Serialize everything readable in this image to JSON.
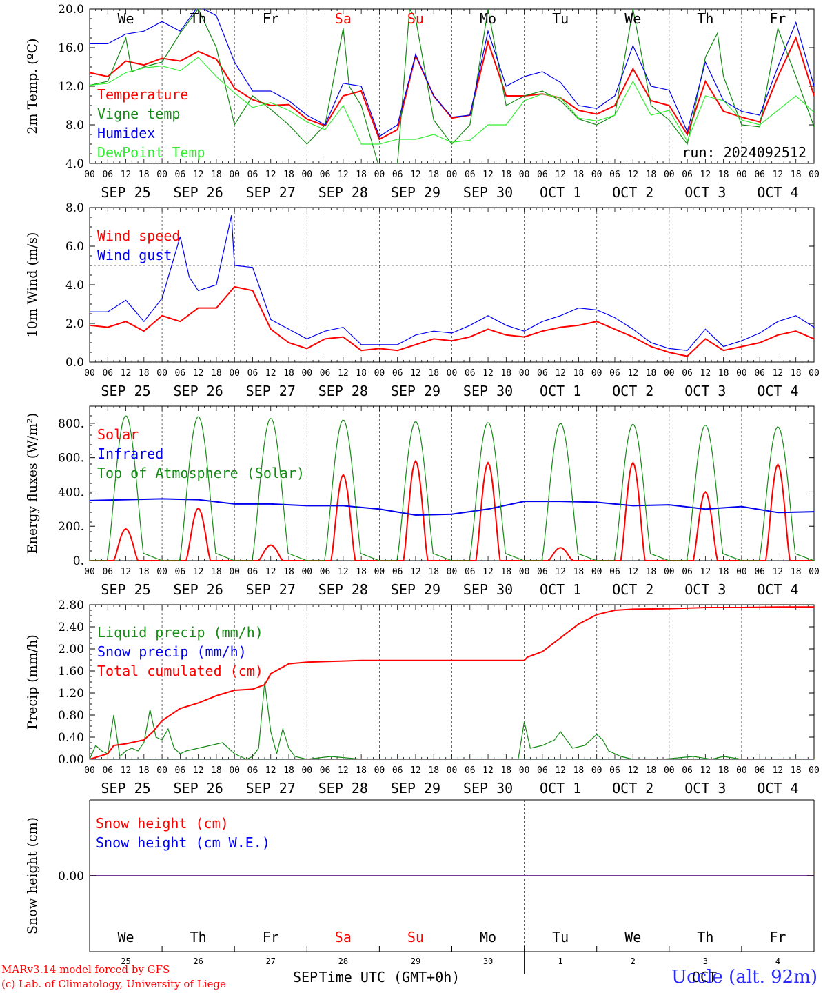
{
  "colors": {
    "red": "#ff0000",
    "green": "#158a15",
    "lightgreen": "#33ee33",
    "blue": "#0000ee",
    "purple": "#7a3a9a",
    "axis": "#000000"
  },
  "days": [
    "SEP 25",
    "SEP 26",
    "SEP 27",
    "SEP 28",
    "SEP 29",
    "SEP 30",
    "OCT  1",
    "OCT  2",
    "OCT  3",
    "OCT  4"
  ],
  "weekdays": [
    {
      "label": "We",
      "color": "black"
    },
    {
      "label": "Th",
      "color": "black"
    },
    {
      "label": "Fr",
      "color": "black"
    },
    {
      "label": "Sa",
      "color": "red"
    },
    {
      "label": "Su",
      "color": "red"
    },
    {
      "label": "Mo",
      "color": "black"
    },
    {
      "label": "Tu",
      "color": "black"
    },
    {
      "label": "We",
      "color": "black"
    },
    {
      "label": "Th",
      "color": "black"
    },
    {
      "label": "Fr",
      "color": "black"
    }
  ],
  "hour_ticks": [
    "00",
    "06",
    "12",
    "18"
  ],
  "last_hour_tick": "00",
  "run_label": "run: 2024092512",
  "day_numbers": [
    "25",
    "26",
    "27",
    "28",
    "29",
    "30",
    "1",
    "2",
    "3",
    "4"
  ],
  "bottom_months": [
    "SEP",
    "OCT"
  ],
  "bottom_axis_label": "Time UTC (GMT+0h)",
  "footer": {
    "credit_line1": "MARv3.14 model forced by GFS",
    "credit_line2": "(c) Lab. of Climatology, University of Liege",
    "station": "Uccle (alt. 92m)"
  },
  "chart_data": [
    {
      "type": "line",
      "ylabel": "2m Temp. (ºC)",
      "ylim": [
        4.0,
        20.0
      ],
      "yticks": [
        "4.0",
        "8.0",
        "12.0",
        "16.0",
        "20.0"
      ],
      "x_unit": "hours since 2024-09-25 00 UTC",
      "series": [
        {
          "name": "Temperature",
          "color": "red",
          "x": [
            0,
            6,
            12,
            18,
            24,
            30,
            36,
            42,
            48,
            54,
            60,
            66,
            72,
            78,
            84,
            90,
            96,
            102,
            108,
            114,
            120,
            126,
            132,
            138,
            144,
            150,
            156,
            162,
            168,
            174,
            180,
            186,
            192,
            198,
            204,
            210,
            216,
            222,
            228,
            234,
            240
          ],
          "y": [
            13.4,
            13.0,
            14.6,
            14.2,
            14.9,
            14.6,
            15.6,
            14.8,
            11.8,
            10.6,
            10.0,
            10.1,
            8.6,
            7.9,
            11.0,
            11.5,
            6.5,
            7.5,
            15.2,
            11.0,
            8.7,
            9.0,
            16.6,
            11.0,
            11.0,
            11.2,
            10.8,
            9.5,
            9.1,
            10.0,
            13.8,
            10.5,
            10.0,
            7.0,
            12.5,
            9.4,
            8.8,
            8.3,
            13.0,
            17.0,
            11.0
          ]
        },
        {
          "name": "Vigne temp",
          "color": "green",
          "x": [
            0,
            6,
            12,
            14,
            18,
            24,
            30,
            36,
            42,
            48,
            54,
            60,
            66,
            72,
            78,
            84,
            86,
            90,
            96,
            102,
            106,
            108,
            114,
            120,
            126,
            132,
            138,
            144,
            150,
            156,
            162,
            168,
            174,
            180,
            186,
            192,
            198,
            204,
            208,
            210,
            216,
            222,
            228,
            234,
            240
          ],
          "y": [
            12.1,
            12.5,
            17.0,
            13.5,
            14.0,
            14.5,
            17.5,
            20.0,
            16.0,
            8.0,
            11.0,
            9.6,
            8.0,
            6.0,
            8.0,
            18.0,
            12.0,
            10.0,
            3.5,
            4.0,
            20.0,
            19.0,
            8.5,
            6.0,
            8.0,
            20.0,
            10.0,
            11.0,
            11.5,
            10.5,
            8.6,
            8.0,
            9.0,
            20.0,
            10.0,
            8.5,
            6.0,
            15.0,
            17.5,
            13.0,
            8.0,
            7.8,
            18.0,
            13.0,
            7.8
          ]
        },
        {
          "name": "Humidex",
          "color": "blue",
          "x": [
            0,
            6,
            12,
            18,
            24,
            30,
            36,
            42,
            48,
            54,
            60,
            66,
            72,
            78,
            84,
            90,
            96,
            102,
            108,
            114,
            120,
            126,
            132,
            138,
            144,
            150,
            156,
            162,
            168,
            174,
            180,
            186,
            192,
            198,
            204,
            210,
            216,
            222,
            228,
            234,
            240
          ],
          "y": [
            16.4,
            16.4,
            17.4,
            17.7,
            18.7,
            17.7,
            20.3,
            19.3,
            14.5,
            11.5,
            11.5,
            10.5,
            9.0,
            8.0,
            12.3,
            12.0,
            6.8,
            8.0,
            15.3,
            11.0,
            8.8,
            9.0,
            17.7,
            12.0,
            13.0,
            13.5,
            12.4,
            10.0,
            9.7,
            11.0,
            16.2,
            12.0,
            11.6,
            7.3,
            14.5,
            10.5,
            9.4,
            9.0,
            14.0,
            18.6,
            12.0
          ]
        },
        {
          "name": "DewPoint Temp",
          "color": "lightgreen",
          "x": [
            0,
            6,
            12,
            18,
            24,
            30,
            36,
            42,
            48,
            54,
            60,
            66,
            72,
            78,
            84,
            90,
            96,
            102,
            108,
            114,
            120,
            126,
            132,
            138,
            144,
            150,
            156,
            162,
            168,
            174,
            180,
            186,
            192,
            198,
            204,
            210,
            216,
            222,
            228,
            234,
            240
          ],
          "y": [
            12.1,
            12.3,
            13.4,
            13.9,
            14.1,
            13.6,
            15.0,
            13.0,
            11.3,
            9.8,
            10.3,
            9.5,
            8.3,
            7.5,
            10.0,
            6.0,
            6.0,
            6.5,
            6.5,
            7.0,
            6.2,
            6.4,
            8.0,
            8.0,
            10.5,
            11.2,
            10.8,
            8.7,
            8.4,
            9.0,
            12.5,
            9.0,
            9.5,
            6.3,
            11.0,
            10.5,
            8.5,
            8.0,
            9.5,
            11.0,
            9.3
          ]
        }
      ]
    },
    {
      "type": "line",
      "ylabel": "10m Wind (m/s)",
      "ylim": [
        0.0,
        8.0
      ],
      "yticks": [
        "0.0",
        "2.0",
        "4.0",
        "6.0",
        "8.0"
      ],
      "reference_line": 5.0,
      "x_unit": "hours since 2024-09-25 00 UTC",
      "series": [
        {
          "name": "Wind speed",
          "color": "red",
          "x": [
            0,
            6,
            12,
            18,
            24,
            30,
            36,
            42,
            48,
            54,
            60,
            66,
            72,
            78,
            84,
            90,
            96,
            102,
            108,
            114,
            120,
            126,
            132,
            138,
            144,
            150,
            156,
            162,
            168,
            174,
            180,
            186,
            192,
            198,
            204,
            210,
            216,
            222,
            228,
            234,
            240
          ],
          "y": [
            1.9,
            1.8,
            2.1,
            1.6,
            2.4,
            2.1,
            2.8,
            2.8,
            3.9,
            3.7,
            1.7,
            1.0,
            0.7,
            1.2,
            1.3,
            0.6,
            0.7,
            0.6,
            0.9,
            1.2,
            1.1,
            1.3,
            1.7,
            1.4,
            1.3,
            1.6,
            1.8,
            1.9,
            2.1,
            1.7,
            1.3,
            0.8,
            0.5,
            0.3,
            1.2,
            0.6,
            0.8,
            1.0,
            1.4,
            1.6,
            1.2
          ]
        },
        {
          "name": "Wind gust",
          "color": "blue",
          "x": [
            0,
            6,
            12,
            18,
            24,
            30,
            33,
            36,
            42,
            47,
            48,
            54,
            60,
            66,
            72,
            78,
            84,
            90,
            96,
            102,
            108,
            114,
            120,
            126,
            132,
            138,
            144,
            150,
            156,
            162,
            168,
            174,
            180,
            186,
            192,
            198,
            204,
            210,
            216,
            222,
            228,
            234,
            240
          ],
          "y": [
            2.6,
            2.6,
            3.2,
            2.1,
            3.3,
            6.5,
            4.4,
            3.7,
            4.0,
            7.6,
            5.0,
            4.9,
            2.2,
            1.7,
            1.2,
            1.6,
            1.8,
            0.9,
            0.9,
            0.9,
            1.4,
            1.6,
            1.5,
            1.9,
            2.4,
            1.9,
            1.6,
            2.1,
            2.4,
            2.8,
            2.7,
            2.3,
            1.7,
            1.0,
            0.7,
            0.6,
            1.7,
            0.8,
            1.1,
            1.5,
            2.1,
            2.4,
            1.8
          ]
        }
      ]
    },
    {
      "type": "line",
      "ylabel": "Energy fluxes (W/m²)",
      "ylim": [
        0,
        900
      ],
      "yticks": [
        "0.",
        "200.",
        "400.",
        "600.",
        "800."
      ],
      "x_unit": "hours since 2024-09-25 00 UTC",
      "series": [
        {
          "name": "Solar",
          "color": "red",
          "daily_peaks": [
            185,
            305,
            90,
            500,
            580,
            570,
            75,
            570,
            400,
            560
          ]
        },
        {
          "name": "Infrared",
          "color": "blue",
          "x": [
            0,
            12,
            24,
            36,
            48,
            60,
            72,
            84,
            96,
            108,
            120,
            132,
            144,
            156,
            168,
            180,
            192,
            204,
            216,
            228,
            240
          ],
          "y": [
            350,
            355,
            360,
            355,
            330,
            330,
            320,
            320,
            300,
            265,
            270,
            300,
            345,
            345,
            340,
            320,
            325,
            300,
            315,
            280,
            285
          ]
        },
        {
          "name": "Top of Atmosphere (Solar)",
          "color": "green",
          "daily_peaks": [
            845,
            840,
            830,
            820,
            810,
            805,
            800,
            795,
            790,
            780
          ]
        }
      ]
    },
    {
      "type": "line",
      "ylabel": "Precip (mm/h)",
      "ylim": [
        0.0,
        2.8
      ],
      "yticks": [
        "0.00",
        "0.40",
        "0.80",
        "1.20",
        "1.60",
        "2.00",
        "2.40",
        "2.80"
      ],
      "x_unit": "hours since 2024-09-25 00 UTC",
      "series": [
        {
          "name": "Liquid precip (mm/h)",
          "color": "green",
          "x": [
            0,
            2,
            4,
            6,
            8,
            10,
            12,
            14,
            16,
            18,
            20,
            22,
            24,
            26,
            28,
            30,
            32,
            36,
            40,
            44,
            48,
            52,
            54,
            56,
            58,
            60,
            62,
            64,
            66,
            68,
            72,
            80,
            90,
            100,
            110,
            120,
            130,
            140,
            142,
            144,
            146,
            150,
            154,
            156,
            160,
            164,
            168,
            170,
            172,
            176,
            180,
            190,
            200,
            206,
            210,
            216,
            220,
            230,
            240
          ],
          "y": [
            0.0,
            0.25,
            0.15,
            0.1,
            0.8,
            0.05,
            0.15,
            0.2,
            0.15,
            0.3,
            0.9,
            0.4,
            0.35,
            0.55,
            0.2,
            0.1,
            0.15,
            0.2,
            0.25,
            0.3,
            0.1,
            0.0,
            0.05,
            0.2,
            1.4,
            0.5,
            0.1,
            0.55,
            0.2,
            0.05,
            0.0,
            0.05,
            0.0,
            0.0,
            0.0,
            0.0,
            0.0,
            0.0,
            0.0,
            0.68,
            0.2,
            0.25,
            0.35,
            0.5,
            0.2,
            0.25,
            0.45,
            0.35,
            0.15,
            0.05,
            0.0,
            0.0,
            0.05,
            0.0,
            0.05,
            0.0,
            0.0,
            0.0,
            0.0
          ]
        },
        {
          "name": "Snow precip (mm/h)",
          "color": "blue",
          "x": [
            0,
            240
          ],
          "y": [
            0,
            0
          ]
        },
        {
          "name": "Total cumulated (cm)",
          "color": "red",
          "x": [
            0,
            6,
            8,
            12,
            18,
            21,
            24,
            30,
            36,
            42,
            48,
            54,
            58,
            60,
            66,
            72,
            78,
            84,
            90,
            96,
            108,
            120,
            132,
            144,
            145,
            150,
            156,
            162,
            168,
            174,
            180,
            192,
            204,
            216,
            228,
            240
          ],
          "y": [
            0.0,
            0.1,
            0.25,
            0.28,
            0.35,
            0.5,
            0.7,
            0.92,
            1.02,
            1.15,
            1.25,
            1.27,
            1.35,
            1.55,
            1.73,
            1.76,
            1.77,
            1.78,
            1.79,
            1.79,
            1.79,
            1.79,
            1.79,
            1.79,
            1.85,
            1.95,
            2.2,
            2.45,
            2.62,
            2.7,
            2.72,
            2.73,
            2.75,
            2.75,
            2.76,
            2.76
          ]
        }
      ]
    },
    {
      "type": "line",
      "ylabel": "Snow height (cm)",
      "ytick": "0.00",
      "x_unit": "hours since 2024-09-25 00 UTC",
      "series": [
        {
          "name": "Snow height (cm)",
          "color": "red",
          "x": [
            0,
            240
          ],
          "y": [
            0,
            0
          ]
        },
        {
          "name": "Snow height (cm W.E.)",
          "color": "blue",
          "x": [
            0,
            240
          ],
          "y": [
            0,
            0
          ]
        }
      ]
    }
  ]
}
